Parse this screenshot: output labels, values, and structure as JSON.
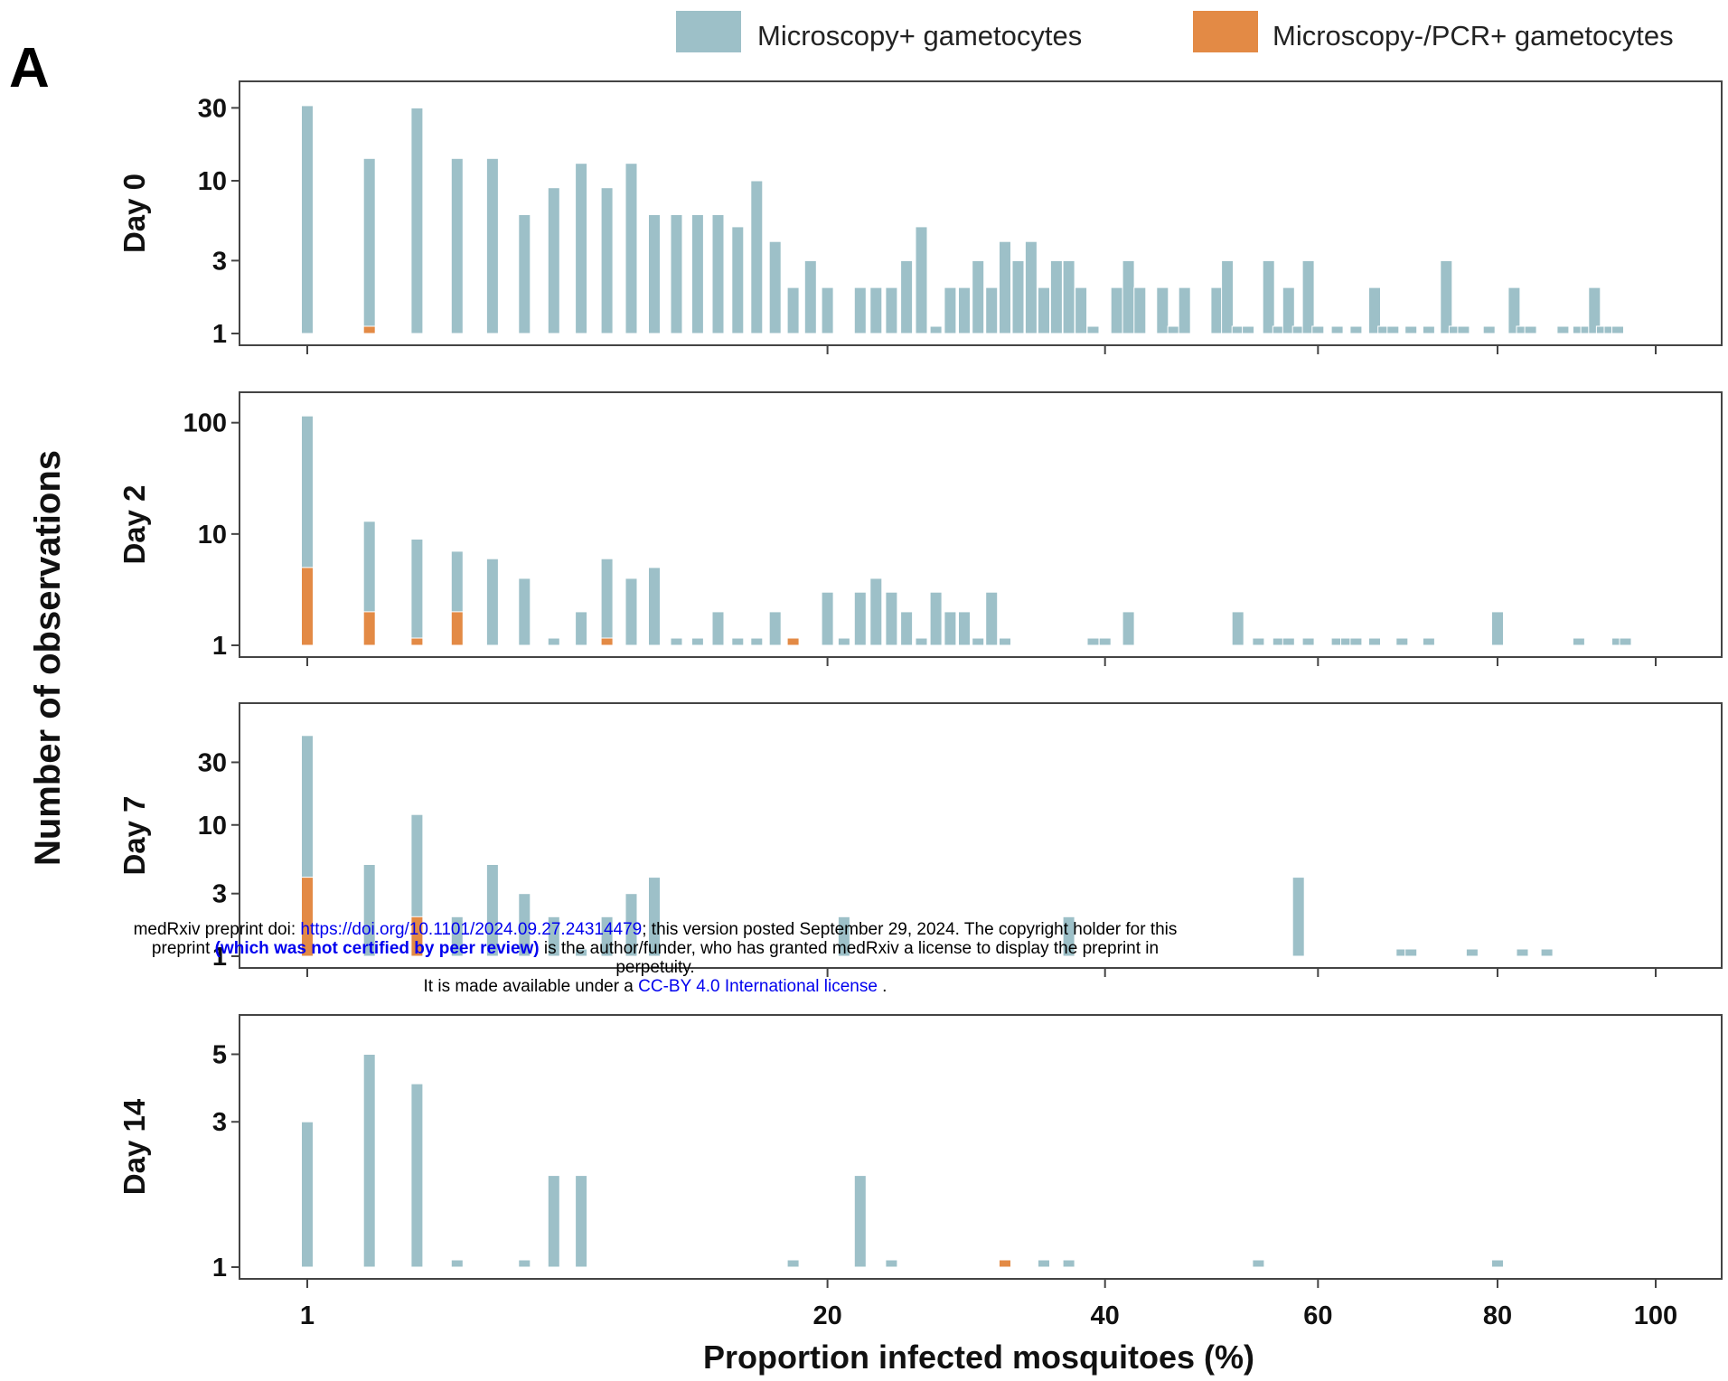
{
  "panel_letter": "A",
  "legend": [
    {
      "label": "Microscopy+ gametocytes",
      "color": "#9dc0c8"
    },
    {
      "label": "Microscopy-/PCR+ gametocytes",
      "color": "#e38a45"
    }
  ],
  "notice": {
    "line1_a": "medRxiv preprint doi: ",
    "line1_link": "https://doi.org/10.1101/2024.09.27.24314479",
    "line1_b": "; this version posted September 29, 2024. The copyright holder for this",
    "line2_a": "preprint ",
    "line2_bold": "(which was not certified by peer review)",
    "line2_b": " is the author/funder, who has granted medRxiv a license to display the preprint in",
    "line3": "perpetuity.",
    "line4_a": "It is made available under a ",
    "line4_link": "CC-BY 4.0 International license",
    "line4_b": " ."
  },
  "chart_data": {
    "type": "bar",
    "xlabel": "Proportion infected mosquitoes (%)",
    "ylabel": "Number of observations",
    "x_ticks": [
      1,
      20,
      40,
      60,
      80,
      100
    ],
    "x_scale": "sqrt",
    "y_scale": "log",
    "colors": {
      "microscopy": "#9dc0c8",
      "pcr": "#e38a45"
    },
    "panels": [
      {
        "label": "Day 0",
        "y_ticks": [
          1,
          3,
          10,
          30
        ],
        "ymax": 38,
        "microscopy": [
          [
            1,
            31
          ],
          [
            2,
            14
          ],
          [
            3,
            30
          ],
          [
            4,
            14
          ],
          [
            5,
            14
          ],
          [
            6,
            6
          ],
          [
            7,
            9
          ],
          [
            8,
            13
          ],
          [
            9,
            9
          ],
          [
            10,
            13
          ],
          [
            11,
            6
          ],
          [
            12,
            6
          ],
          [
            13,
            6
          ],
          [
            14,
            6
          ],
          [
            15,
            5
          ],
          [
            16,
            10
          ],
          [
            17,
            4
          ],
          [
            18,
            2
          ],
          [
            19,
            3
          ],
          [
            20,
            2
          ],
          [
            22,
            2
          ],
          [
            23,
            2
          ],
          [
            24,
            2
          ],
          [
            25,
            3
          ],
          [
            26,
            5
          ],
          [
            27,
            1
          ],
          [
            28,
            2
          ],
          [
            29,
            2
          ],
          [
            30,
            3
          ],
          [
            31,
            2
          ],
          [
            32,
            4
          ],
          [
            33,
            3
          ],
          [
            34,
            4
          ],
          [
            35,
            2
          ],
          [
            36,
            3
          ],
          [
            37,
            3
          ],
          [
            38,
            2
          ],
          [
            39,
            1
          ],
          [
            41,
            2
          ],
          [
            42,
            3
          ],
          [
            43,
            2
          ],
          [
            45,
            2
          ],
          [
            46,
            1
          ],
          [
            47,
            2
          ],
          [
            50,
            2
          ],
          [
            51,
            3
          ],
          [
            52,
            1
          ],
          [
            53,
            1
          ],
          [
            55,
            3
          ],
          [
            56,
            1
          ],
          [
            57,
            2
          ],
          [
            58,
            1
          ],
          [
            59,
            3
          ],
          [
            60,
            1
          ],
          [
            62,
            1
          ],
          [
            64,
            1
          ],
          [
            66,
            2
          ],
          [
            67,
            1
          ],
          [
            68,
            1
          ],
          [
            70,
            1
          ],
          [
            72,
            1
          ],
          [
            74,
            3
          ],
          [
            75,
            1
          ],
          [
            76,
            1
          ],
          [
            79,
            1
          ],
          [
            82,
            2
          ],
          [
            83,
            1
          ],
          [
            84,
            1
          ],
          [
            88,
            1
          ],
          [
            90,
            1
          ],
          [
            91,
            1
          ],
          [
            92,
            2
          ],
          [
            93,
            1
          ],
          [
            94,
            1
          ],
          [
            95,
            1
          ]
        ],
        "pcr": [
          [
            2,
            1
          ]
        ]
      },
      {
        "label": "Day 2",
        "y_ticks": [
          1,
          10,
          100
        ],
        "ymax": 150,
        "microscopy": [
          [
            1,
            115
          ],
          [
            2,
            13
          ],
          [
            3,
            9
          ],
          [
            4,
            7
          ],
          [
            5,
            6
          ],
          [
            6,
            4
          ],
          [
            7,
            1
          ],
          [
            8,
            2
          ],
          [
            9,
            6
          ],
          [
            10,
            4
          ],
          [
            11,
            5
          ],
          [
            12,
            1
          ],
          [
            13,
            1
          ],
          [
            14,
            2
          ],
          [
            15,
            1
          ],
          [
            16,
            1
          ],
          [
            17,
            2
          ],
          [
            18,
            1
          ],
          [
            20,
            3
          ],
          [
            21,
            1
          ],
          [
            22,
            3
          ],
          [
            23,
            4
          ],
          [
            24,
            3
          ],
          [
            25,
            2
          ],
          [
            26,
            1
          ],
          [
            27,
            3
          ],
          [
            28,
            2
          ],
          [
            29,
            2
          ],
          [
            30,
            1
          ],
          [
            31,
            3
          ],
          [
            32,
            1
          ],
          [
            39,
            1
          ],
          [
            40,
            1
          ],
          [
            42,
            2
          ],
          [
            52,
            2
          ],
          [
            54,
            1
          ],
          [
            56,
            1
          ],
          [
            57,
            1
          ],
          [
            59,
            1
          ],
          [
            62,
            1
          ],
          [
            63,
            1
          ],
          [
            64,
            1
          ],
          [
            66,
            1
          ],
          [
            69,
            1
          ],
          [
            72,
            1
          ],
          [
            80,
            2
          ],
          [
            90,
            1
          ],
          [
            95,
            1
          ],
          [
            96,
            1
          ]
        ],
        "pcr": [
          [
            1,
            5
          ],
          [
            2,
            2
          ],
          [
            3,
            1
          ],
          [
            4,
            2
          ],
          [
            9,
            1
          ],
          [
            18,
            1
          ]
        ]
      },
      {
        "label": "Day 7",
        "y_ticks": [
          1,
          3,
          10,
          30
        ],
        "ymax": 70,
        "microscopy": [
          [
            1,
            48
          ],
          [
            2,
            5
          ],
          [
            3,
            12
          ],
          [
            4,
            2
          ],
          [
            5,
            5
          ],
          [
            6,
            3
          ],
          [
            7,
            2
          ],
          [
            8,
            1
          ],
          [
            9,
            2
          ],
          [
            10,
            3
          ],
          [
            11,
            4
          ],
          [
            21,
            2
          ],
          [
            37,
            2
          ],
          [
            58,
            4
          ],
          [
            69,
            1
          ],
          [
            70,
            1
          ],
          [
            77,
            1
          ],
          [
            83,
            1
          ],
          [
            86,
            1
          ]
        ],
        "pcr": [
          [
            1,
            4
          ],
          [
            3,
            2
          ]
        ]
      },
      {
        "label": "Day 14",
        "y_ticks": [
          1,
          3,
          5
        ],
        "ymax": 6.2,
        "microscopy": [
          [
            1,
            3
          ],
          [
            2,
            5
          ],
          [
            3,
            4
          ],
          [
            4,
            1
          ],
          [
            6,
            1
          ],
          [
            7,
            2
          ],
          [
            8,
            2
          ],
          [
            18,
            1
          ],
          [
            22,
            2
          ],
          [
            24,
            1
          ],
          [
            35,
            1
          ],
          [
            37,
            1
          ],
          [
            54,
            1
          ],
          [
            80,
            1
          ]
        ],
        "pcr": [
          [
            32,
            1
          ]
        ]
      }
    ]
  }
}
